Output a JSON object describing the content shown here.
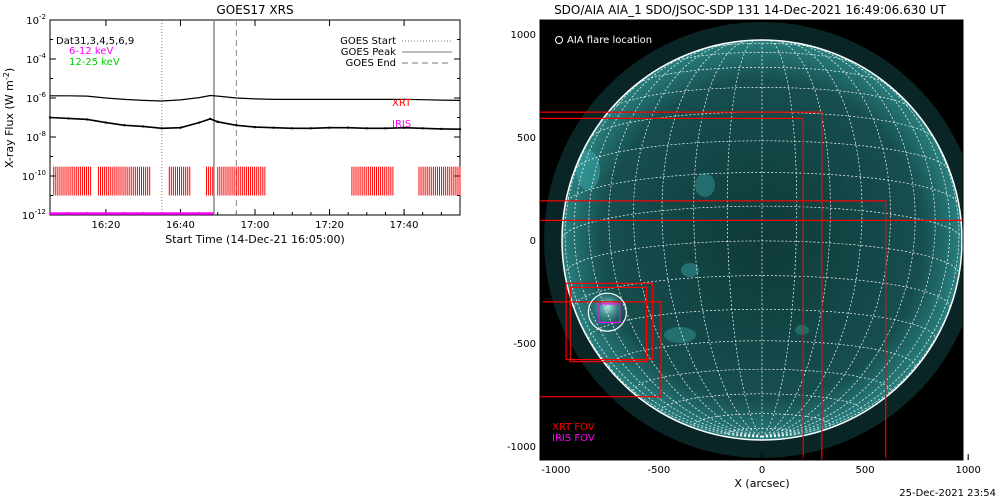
{
  "left_panel": {
    "title": "GOES17 XRS",
    "ylabel": "X-ray Flux (W m",
    "ylabel_sup": "-2",
    "ylabel_close": ")",
    "xlabel": "Start Time (14-Dec-21 16:05:00)",
    "y_ticks": [
      {
        "label": "10",
        "exp": "-2"
      },
      {
        "label": "10",
        "exp": "-4"
      },
      {
        "label": "10",
        "exp": "-6"
      },
      {
        "label": "10",
        "exp": "-8"
      },
      {
        "label": "10",
        "exp": "-10"
      },
      {
        "label": "10",
        "exp": "-12"
      }
    ],
    "x_ticks": [
      "16:20",
      "16:40",
      "17:00",
      "17:20",
      "17:40"
    ],
    "data_label": "Dat31,3,4,5,6,9",
    "energy_bands": [
      {
        "label": "6-12 keV",
        "color": "#ff00ff"
      },
      {
        "label": "12-25 keV",
        "color": "#00cc00"
      }
    ],
    "legend": [
      {
        "label": "GOES Start",
        "style": "dotted"
      },
      {
        "label": "GOES Peak",
        "style": "solid"
      },
      {
        "label": "GOES End",
        "style": "dashed"
      }
    ],
    "xrt_label": "XRT",
    "iris_label": "IRIS",
    "colors": {
      "xrt": "#ff0000",
      "iris": "#ff00ff",
      "curve": "#000000"
    }
  },
  "right_panel": {
    "title": "SDO/AIA AIA_1 SDO/JSOC-SDP 131 14-Dec-2021 16:49:06.630 UT",
    "xlabel": "X (arcsec)",
    "x_ticks": [
      "-1000",
      "-500",
      "0",
      "500",
      "1000"
    ],
    "y_ticks": [
      "1000",
      "500",
      "0",
      "-500",
      "-1000"
    ],
    "flare_location_label": "AIA flare location",
    "xrt_fov_label": "XRT FOV",
    "iris_fov_label": "IRIS FOV",
    "colors": {
      "xrt": "#ff0000",
      "iris": "#ff00ff",
      "disk": "#1a6060",
      "grid": "#ffffff"
    }
  },
  "footer": {
    "timestamp": "25-Dec-2021 23:54"
  },
  "chart_data": [
    {
      "type": "line",
      "title": "GOES17 XRS",
      "xlabel": "Start Time (14-Dec-21 16:05:00)",
      "ylabel": "X-ray Flux (W m^-2)",
      "yscale": "log",
      "ylim": [
        1e-12,
        0.01
      ],
      "xlim": [
        "16:05",
        "17:55"
      ],
      "series": [
        {
          "name": "6-12 keV",
          "x": [
            "16:05",
            "16:10",
            "16:15",
            "16:20",
            "16:25",
            "16:30",
            "16:35",
            "16:40",
            "16:45",
            "16:48",
            "16:50",
            "16:55",
            "17:00",
            "17:05",
            "17:10",
            "17:15",
            "17:20",
            "17:25",
            "17:30",
            "17:35",
            "17:40",
            "17:45",
            "17:50",
            "17:55"
          ],
          "values": [
            1.3e-06,
            1.3e-06,
            1.25e-06,
            1e-06,
            8.5e-07,
            7.5e-07,
            7e-07,
            8e-07,
            1.05e-06,
            1.35e-06,
            1.25e-06,
            1e-06,
            9e-07,
            8.5e-07,
            8.5e-07,
            8.5e-07,
            8.5e-07,
            8.5e-07,
            8.5e-07,
            8.5e-07,
            8.5e-07,
            8.2e-07,
            7.8e-07,
            7.5e-07
          ]
        },
        {
          "name": "12-25 keV",
          "x": [
            "16:05",
            "16:10",
            "16:15",
            "16:20",
            "16:25",
            "16:30",
            "16:35",
            "16:40",
            "16:45",
            "16:48",
            "16:50",
            "16:55",
            "17:00",
            "17:05",
            "17:10",
            "17:15",
            "17:20",
            "17:25",
            "17:30",
            "17:35",
            "17:40",
            "17:45",
            "17:50",
            "17:55"
          ],
          "values": [
            1e-07,
            9e-08,
            8e-08,
            5.5e-08,
            4e-08,
            3.5e-08,
            2.8e-08,
            3e-08,
            5.5e-08,
            8.5e-08,
            6e-08,
            4e-08,
            3.2e-08,
            3e-08,
            2.8e-08,
            2.8e-08,
            3e-08,
            3e-08,
            2.8e-08,
            2.8e-08,
            3e-08,
            2.8e-08,
            2.6e-08,
            2.5e-08
          ]
        }
      ],
      "events": {
        "goes_start": "16:35",
        "goes_peak": "16:49",
        "goes_end": "16:55"
      },
      "xrt_intervals": [
        [
          "16:06",
          "16:16"
        ],
        [
          "16:18",
          "16:32"
        ],
        [
          "16:37",
          "16:43"
        ],
        [
          "16:47",
          "16:49"
        ],
        [
          "16:50",
          "17:03"
        ],
        [
          "17:26",
          "17:37"
        ],
        [
          "17:44",
          "17:55"
        ]
      ],
      "iris_interval": [
        "16:05",
        "16:49"
      ]
    },
    {
      "type": "scatter",
      "title": "SDO/AIA AIA_1 SDO/JSOC-SDP 131 14-Dec-2021 16:49:06.630 UT",
      "xlabel": "X (arcsec)",
      "xlim": [
        -1100,
        1100
      ],
      "ylim": [
        -1100,
        1100
      ],
      "grid": true,
      "solar_radius": 970,
      "flare_location": [
        -750,
        -350
      ],
      "xrt_fov": [
        [
          -1095,
          290,
          -1095,
          620
        ],
        [
          -1095,
          200,
          -1095,
          590
        ],
        [
          -1095,
          1000,
          -1095,
          75
        ],
        [
          -1095,
          600,
          -1095,
          95
        ],
        [
          -1095,
          -550,
          -500,
          -680
        ],
        [
          -1095,
          -750,
          -1095,
          -760
        ],
        [
          -950,
          -360,
          -620,
          -300
        ],
        [
          -930,
          -380,
          -600,
          -400
        ],
        [
          -1095,
          -760,
          -980,
          -580
        ],
        [
          -540,
          -760,
          -1095,
          -755
        ]
      ],
      "iris_fov": [
        -790,
        -310,
        -690,
        -400
      ]
    }
  ]
}
